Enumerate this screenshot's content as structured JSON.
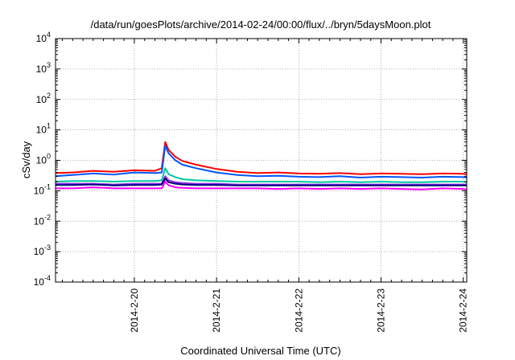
{
  "chart_data": {
    "type": "line",
    "title": "/data/run/goesPlots/archive/2014-02-24/00:00/flux/../bryn/5daysMoon.plot",
    "xlabel": "Coordinated Universal Time (UTC)",
    "ylabel": "cSv/day",
    "y_scale": "log",
    "ylim": [
      0.0001,
      10000
    ],
    "y_ticks": [
      {
        "value": 0.0001,
        "base": "10",
        "exp": "-4"
      },
      {
        "value": 0.001,
        "base": "10",
        "exp": "-3"
      },
      {
        "value": 0.01,
        "base": "10",
        "exp": "-2"
      },
      {
        "value": 0.1,
        "base": "10",
        "exp": "-1"
      },
      {
        "value": 1,
        "base": "10",
        "exp": "0"
      },
      {
        "value": 10,
        "base": "10",
        "exp": "1"
      },
      {
        "value": 100,
        "base": "10",
        "exp": "2"
      },
      {
        "value": 1000,
        "base": "10",
        "exp": "3"
      },
      {
        "value": 10000,
        "base": "10",
        "exp": "4"
      }
    ],
    "xlim": [
      "2014-02-19 01:00",
      "2014-02-24 01:00"
    ],
    "x_ticks": [
      "2014-2-20",
      "2014-2-21",
      "2014-2-22",
      "2014-2-23",
      "2014-2-24"
    ],
    "grid": true,
    "x": [
      "2014-02-19 01:00",
      "2014-02-19 06:00",
      "2014-02-19 12:00",
      "2014-02-19 18:00",
      "2014-02-20 00:00",
      "2014-02-20 06:00",
      "2014-02-20 08:00",
      "2014-02-20 09:00",
      "2014-02-20 10:00",
      "2014-02-20 12:00",
      "2014-02-20 14:00",
      "2014-02-20 18:00",
      "2014-02-21 00:00",
      "2014-02-21 06:00",
      "2014-02-21 12:00",
      "2014-02-21 18:00",
      "2014-02-22 00:00",
      "2014-02-22 06:00",
      "2014-02-22 12:00",
      "2014-02-22 18:00",
      "2014-02-23 00:00",
      "2014-02-23 06:00",
      "2014-02-23 12:00",
      "2014-02-23 18:00",
      "2014-02-24 00:00",
      "2014-02-24 01:00"
    ],
    "series": [
      {
        "color": "#ff0000",
        "values": [
          0.38,
          0.4,
          0.45,
          0.42,
          0.47,
          0.45,
          0.55,
          4.0,
          2.2,
          1.3,
          0.95,
          0.72,
          0.52,
          0.42,
          0.38,
          0.4,
          0.37,
          0.36,
          0.38,
          0.35,
          0.37,
          0.36,
          0.35,
          0.37,
          0.36,
          0.35
        ]
      },
      {
        "color": "#0055ff",
        "values": [
          0.3,
          0.33,
          0.37,
          0.34,
          0.4,
          0.38,
          0.4,
          3.0,
          1.7,
          1.0,
          0.72,
          0.55,
          0.4,
          0.33,
          0.3,
          0.31,
          0.29,
          0.28,
          0.3,
          0.27,
          0.29,
          0.28,
          0.27,
          0.29,
          0.28,
          0.27
        ]
      },
      {
        "color": "#00c8a0",
        "values": [
          0.2,
          0.21,
          0.21,
          0.2,
          0.21,
          0.21,
          0.22,
          0.55,
          0.35,
          0.28,
          0.24,
          0.22,
          0.21,
          0.2,
          0.2,
          0.2,
          0.2,
          0.19,
          0.2,
          0.19,
          0.2,
          0.19,
          0.19,
          0.2,
          0.2,
          0.19
        ]
      },
      {
        "color": "#8a2be2",
        "values": [
          0.17,
          0.17,
          0.17,
          0.16,
          0.17,
          0.17,
          0.17,
          0.3,
          0.22,
          0.19,
          0.18,
          0.17,
          0.17,
          0.16,
          0.16,
          0.16,
          0.16,
          0.16,
          0.16,
          0.16,
          0.16,
          0.16,
          0.16,
          0.16,
          0.16,
          0.16
        ]
      },
      {
        "color": "#000080",
        "values": [
          0.155,
          0.155,
          0.16,
          0.15,
          0.155,
          0.155,
          0.16,
          0.25,
          0.19,
          0.17,
          0.16,
          0.155,
          0.155,
          0.15,
          0.15,
          0.15,
          0.15,
          0.15,
          0.15,
          0.15,
          0.15,
          0.15,
          0.15,
          0.15,
          0.15,
          0.15
        ]
      },
      {
        "color": "#ff00ff",
        "values": [
          0.12,
          0.12,
          0.13,
          0.12,
          0.12,
          0.12,
          0.12,
          0.2,
          0.15,
          0.13,
          0.125,
          0.12,
          0.12,
          0.12,
          0.12,
          0.115,
          0.12,
          0.115,
          0.12,
          0.115,
          0.12,
          0.115,
          0.11,
          0.12,
          0.115,
          0.11
        ]
      }
    ]
  }
}
